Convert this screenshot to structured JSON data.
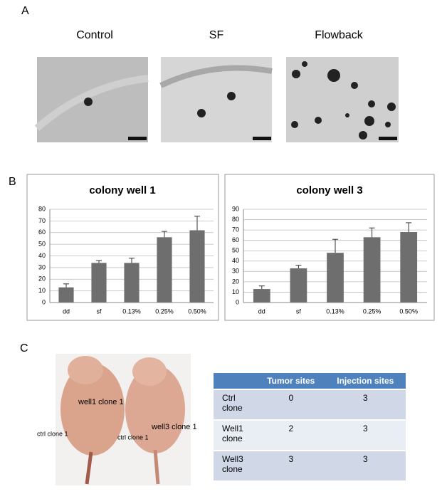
{
  "panels": {
    "a": "A",
    "b": "B",
    "c": "C"
  },
  "image_titles": [
    "Control",
    "SF",
    "Flowback"
  ],
  "chart_data": [
    {
      "type": "bar",
      "title": "colony well 1",
      "categories": [
        "dd",
        "sf",
        "0.13%",
        "0.25%",
        "0.50%"
      ],
      "values": [
        13,
        34,
        34,
        56,
        62
      ],
      "errors": [
        3,
        2,
        4,
        5,
        12
      ],
      "color": "#6e6e6e",
      "ylim": [
        0,
        80
      ],
      "yticks": [
        0,
        10,
        20,
        30,
        40,
        50,
        60,
        70,
        80
      ],
      "grid": true
    },
    {
      "type": "bar",
      "title": "colony well 3",
      "categories": [
        "dd",
        "sf",
        "0.13%",
        "0.25%",
        "0.50%"
      ],
      "values": [
        13,
        33,
        48,
        63,
        68
      ],
      "errors": [
        3,
        3,
        13,
        9,
        9
      ],
      "color": "#6e6e6e",
      "ylim": [
        0,
        90
      ],
      "yticks": [
        0,
        10,
        20,
        30,
        40,
        50,
        60,
        70,
        80,
        90
      ],
      "grid": true
    }
  ],
  "photo_labels": [
    "well1 clone 1",
    "well3 clone 1",
    "ctrl clone 1",
    "ctrl clone 1"
  ],
  "table": {
    "header": [
      "Tumor sites",
      "Injection sites"
    ],
    "rows": [
      [
        "Ctrl clone",
        0,
        3
      ],
      [
        "Well1 clone",
        2,
        3
      ],
      [
        "Well3 clone",
        3,
        3
      ]
    ]
  }
}
